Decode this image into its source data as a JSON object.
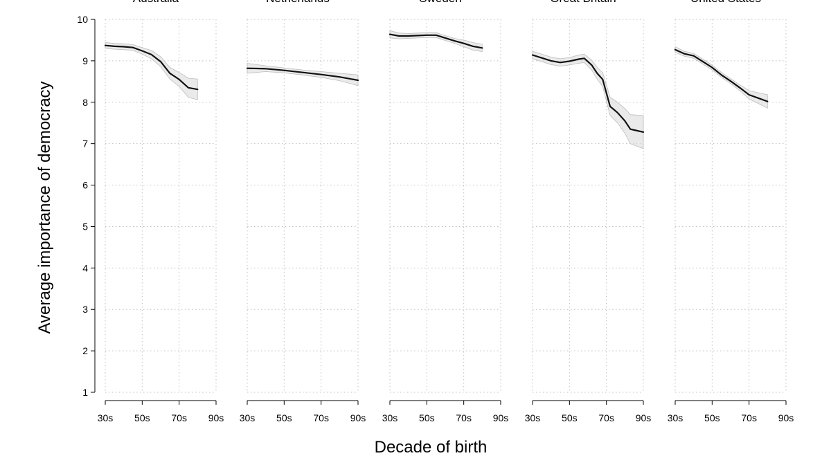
{
  "chart_data": {
    "type": "line",
    "ylabel": "Average importance of democracy",
    "xlabel": "Decade of birth",
    "ylim": [
      1,
      10
    ],
    "yticks": [
      "1",
      "2",
      "3",
      "4",
      "5",
      "6",
      "7",
      "8",
      "9",
      "10"
    ],
    "xlim": [
      1930,
      1990
    ],
    "xticks": [
      {
        "value": 1930,
        "label": "30s"
      },
      {
        "value": 1950,
        "label": "50s"
      },
      {
        "value": 1970,
        "label": "70s"
      },
      {
        "value": 1990,
        "label": "90s"
      }
    ],
    "grid": true,
    "band": "confidence band (shaded)",
    "colors": {
      "line": "#111111",
      "band": "#d8d8d8",
      "grid": "#bfbfbf",
      "axis": "#000000"
    },
    "panels": [
      {
        "name": "Australia",
        "x": [
          1930,
          1935,
          1940,
          1945,
          1950,
          1955,
          1960,
          1965,
          1970,
          1975,
          1980
        ],
        "y": [
          9.37,
          9.35,
          9.34,
          9.32,
          9.24,
          9.15,
          8.98,
          8.7,
          8.55,
          8.35,
          8.31
        ],
        "lower": [
          9.3,
          9.28,
          9.27,
          9.25,
          9.16,
          9.05,
          8.86,
          8.56,
          8.38,
          8.12,
          8.06
        ],
        "upper": [
          9.44,
          9.42,
          9.41,
          9.39,
          9.32,
          9.25,
          9.1,
          8.84,
          8.72,
          8.58,
          8.56
        ]
      },
      {
        "name": "Netherlands",
        "x": [
          1930,
          1940,
          1950,
          1960,
          1970,
          1980,
          1990
        ],
        "y": [
          8.82,
          8.81,
          8.77,
          8.72,
          8.67,
          8.61,
          8.53
        ],
        "lower": [
          8.7,
          8.74,
          8.71,
          8.66,
          8.6,
          8.52,
          8.4
        ],
        "upper": [
          8.94,
          8.88,
          8.83,
          8.78,
          8.74,
          8.7,
          8.66
        ]
      },
      {
        "name": "Sweden",
        "x": [
          1930,
          1935,
          1940,
          1945,
          1950,
          1955,
          1960,
          1965,
          1970,
          1975,
          1980
        ],
        "y": [
          9.64,
          9.6,
          9.6,
          9.61,
          9.62,
          9.62,
          9.55,
          9.48,
          9.42,
          9.35,
          9.31
        ],
        "lower": [
          9.55,
          9.53,
          9.54,
          9.55,
          9.56,
          9.56,
          9.49,
          9.42,
          9.34,
          9.26,
          9.22
        ],
        "upper": [
          9.73,
          9.67,
          9.66,
          9.67,
          9.68,
          9.68,
          9.61,
          9.54,
          9.5,
          9.44,
          9.4
        ]
      },
      {
        "name": "Great Britain",
        "x": [
          1930,
          1935,
          1940,
          1945,
          1950,
          1955,
          1958,
          1962,
          1965,
          1968,
          1972,
          1976,
          1980,
          1983,
          1986,
          1990
        ],
        "y": [
          9.14,
          9.07,
          9.0,
          8.96,
          8.99,
          9.04,
          9.06,
          8.9,
          8.7,
          8.55,
          7.9,
          7.75,
          7.55,
          7.35,
          7.32,
          7.28
        ],
        "lower": [
          9.05,
          8.98,
          8.91,
          8.87,
          8.9,
          8.94,
          8.96,
          8.78,
          8.56,
          8.38,
          7.68,
          7.5,
          7.25,
          7.0,
          6.95,
          6.88
        ],
        "upper": [
          9.23,
          9.16,
          9.09,
          9.05,
          9.08,
          9.14,
          9.16,
          9.02,
          8.84,
          8.72,
          8.12,
          8.0,
          7.85,
          7.7,
          7.69,
          7.68
        ]
      },
      {
        "name": "United States",
        "x": [
          1930,
          1935,
          1940,
          1945,
          1950,
          1955,
          1960,
          1965,
          1970,
          1975,
          1980
        ],
        "y": [
          9.27,
          9.17,
          9.12,
          8.98,
          8.84,
          8.66,
          8.51,
          8.35,
          8.18,
          8.1,
          8.02
        ],
        "lower": [
          9.2,
          9.11,
          9.06,
          8.92,
          8.78,
          8.6,
          8.45,
          8.28,
          8.08,
          7.97,
          7.86
        ],
        "upper": [
          9.34,
          9.23,
          9.18,
          9.04,
          8.9,
          8.72,
          8.57,
          8.42,
          8.28,
          8.23,
          8.18
        ]
      }
    ]
  }
}
